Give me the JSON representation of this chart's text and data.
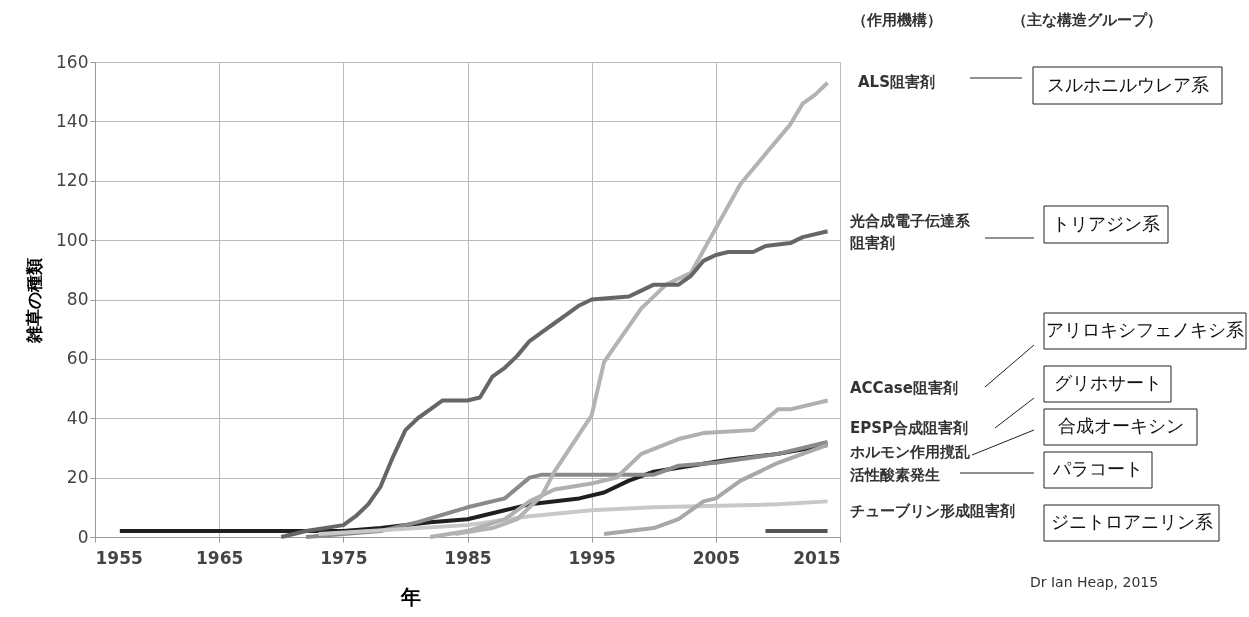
{
  "chart_data": {
    "type": "line",
    "xlabel": "年",
    "ylabel": "雑草の種類",
    "xlim": [
      1955,
      2015
    ],
    "xticks": [
      1955,
      1965,
      1975,
      1985,
      1995,
      2005,
      2015
    ],
    "ylim": [
      0,
      160
    ],
    "yticks": [
      0,
      20,
      40,
      60,
      80,
      100,
      120,
      140,
      160
    ],
    "grid": true,
    "marker": "none",
    "line_style": "solid",
    "series": [
      {
        "color": "#1f1f1f",
        "x": [
          1957,
          1970,
          1975,
          1978,
          1982,
          1985,
          1988,
          1990,
          1994,
          1996,
          1998,
          2000,
          2003,
          2006,
          2010,
          2014
        ],
        "values": [
          2,
          2,
          2,
          3,
          5,
          6,
          9,
          11,
          13,
          15,
          19,
          22,
          24,
          26,
          28,
          31
        ]
      },
      {
        "color": "#8a8a8a",
        "x": [
          1972,
          1978,
          1981,
          1985,
          1988,
          1990,
          1991,
          2000,
          2002,
          2005,
          2010,
          2012,
          2014
        ],
        "values": [
          0,
          2,
          5,
          10,
          13,
          20,
          21,
          21,
          24,
          25,
          28,
          30,
          32
        ]
      },
      {
        "color": "#c8c8c8",
        "x": [
          1973,
          1985,
          1990,
          1995,
          2000,
          2010,
          2014
        ],
        "values": [
          1,
          4,
          7,
          9,
          10,
          11,
          12
        ]
      },
      {
        "color": "#b0b0b0",
        "x": [
          1982,
          1985,
          1988,
          1990,
          1992,
          1995,
          1997,
          1999,
          2002,
          2004,
          2008,
          2010,
          2011,
          2014
        ],
        "values": [
          0,
          2,
          6,
          12,
          16,
          18,
          20,
          28,
          33,
          35,
          36,
          43,
          43,
          46
        ]
      },
      {
        "color": "#a8a8a8",
        "x": [
          1996,
          2000,
          2002,
          2004,
          2005,
          2007,
          2010,
          2012,
          2014
        ],
        "values": [
          1,
          3,
          6,
          12,
          13,
          19,
          25,
          28,
          31
        ]
      },
      {
        "color": "#555555",
        "x": [
          2009,
          2014
        ],
        "values": [
          2,
          2
        ]
      },
      {
        "color": "#b3b3b3",
        "x": [
          1984,
          1987,
          1989,
          1990,
          1991,
          1992,
          1995,
          1996,
          1999,
          2001,
          2003,
          2005,
          2007,
          2011,
          2012,
          2013,
          2014
        ],
        "values": [
          1,
          3,
          6,
          10,
          14,
          22,
          41,
          59,
          77,
          85,
          89,
          104,
          119,
          139,
          146,
          149,
          153
        ]
      },
      {
        "color": "#666666",
        "x": [
          1970,
          1972,
          1975,
          1976,
          1977,
          1978,
          1979,
          1980,
          1981,
          1982,
          1983,
          1985,
          1986,
          1987,
          1988,
          1989,
          1990,
          1991,
          1992,
          1993,
          1994,
          1995,
          1998,
          1999,
          2000,
          2002,
          2003,
          2004,
          2005,
          2006,
          2008,
          2009,
          2011,
          2012,
          2014
        ],
        "values": [
          0,
          2,
          4,
          7,
          11,
          17,
          27,
          36,
          40,
          43,
          46,
          46,
          47,
          54,
          57,
          61,
          66,
          69,
          72,
          75,
          78,
          80,
          81,
          83,
          85,
          85,
          88,
          93,
          95,
          96,
          96,
          98,
          99,
          101,
          103
        ]
      }
    ],
    "annotations": [
      "（作用機構）",
      "（主な構造グループ）",
      "ALS阻害剤",
      "光合成電子伝達系",
      "阻害剤",
      "ACCase阻害剤",
      "EPSP合成阻害剤",
      "ホルモン作用撹乱",
      "活性酸素発生",
      "チューブリン形成阻害剤",
      "スルホニルウレア系",
      "トリアジン系",
      "アリロキシフェノキシ系",
      "グリホサート",
      "合成オーキシン",
      "パラコート",
      "ジニトロアニリン系",
      "Dr  Ian Heap, 2015"
    ]
  }
}
